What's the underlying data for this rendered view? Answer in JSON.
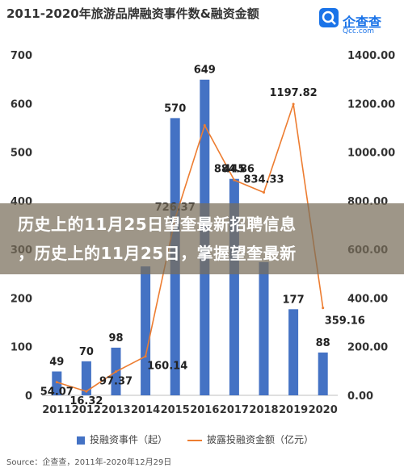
{
  "header": {
    "title": "2011-2020年旅游品牌融资事件数&融资金额",
    "logo_name": "企查查",
    "logo_domain": "Qcc.com"
  },
  "banner": {
    "line1": "历史上的11月25日望奎最新招聘信息",
    "line2": "，历史上的11月25日，掌握望奎最新"
  },
  "legend": {
    "bar_label": "投融资事件（起）",
    "line_label": "披露投融资金额（亿元）"
  },
  "source": {
    "text": "Source：企查查，2011年-2020年12月29日"
  },
  "colors": {
    "bar": "#4472c4",
    "line": "#ed7d31",
    "banner": "#786e5a"
  },
  "chart_data": {
    "type": "bar",
    "categories": [
      "2011",
      "2012",
      "2013",
      "2014",
      "2015",
      "2016",
      "2017",
      "2018",
      "2019",
      "2020"
    ],
    "series": [
      {
        "name": "投融资事件（起）",
        "type": "bar",
        "axis": "left",
        "values": [
          49,
          70,
          98,
          265,
          570,
          649,
          445,
          274,
          177,
          88
        ],
        "labels": [
          "49",
          "70",
          "98",
          "",
          "570",
          "649",
          "445",
          "",
          "177",
          "88"
        ]
      },
      {
        "name": "披露投融资金额（亿元）",
        "type": "line",
        "axis": "right",
        "values": [
          54.07,
          16.32,
          97.37,
          160.14,
          726.37,
          1110.0,
          884.86,
          834.33,
          1197.82,
          359.16
        ],
        "labels": [
          "54.07",
          "16.32",
          "97.37",
          "160.14",
          "726.37",
          "",
          "884.86",
          "834.33",
          "1197.82",
          "359.16"
        ]
      }
    ],
    "y_left": {
      "min": 0,
      "max": 700,
      "ticks": [
        "0",
        "100",
        "200",
        "300",
        "400",
        "500",
        "600",
        "700"
      ]
    },
    "y_right": {
      "min": 0,
      "max": 1400,
      "ticks": [
        "0.00",
        "200.00",
        "400.00",
        "600.00",
        "800.00",
        "1000.00",
        "1200.00",
        "1400.00"
      ]
    },
    "grid": false,
    "legend_position": "bottom"
  }
}
